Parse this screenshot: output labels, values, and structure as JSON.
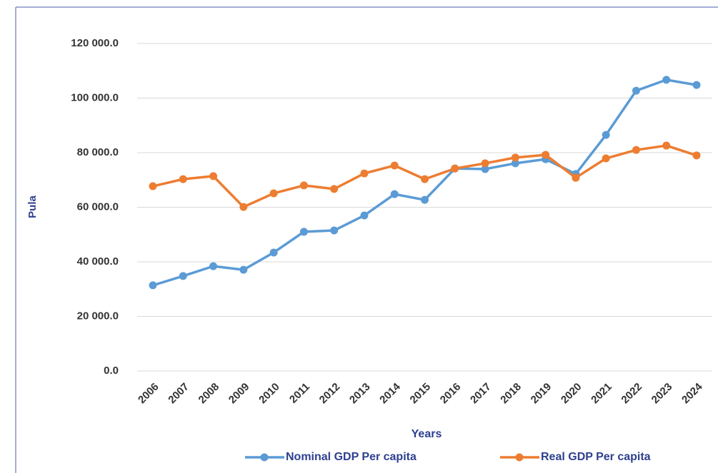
{
  "chart_data": {
    "type": "line",
    "x_label": "Years",
    "y_label": "Pula",
    "categories": [
      "2006",
      "2007",
      "2008",
      "2009",
      "2010",
      "2011",
      "2012",
      "2013",
      "2014",
      "2015",
      "2016",
      "2017",
      "2018",
      "2019",
      "2020",
      "2021",
      "2022",
      "2023",
      "2024"
    ],
    "series": [
      {
        "name": "Nominal GDP Per capita",
        "color": "#5b9bd5",
        "values": [
          31400,
          34800,
          38400,
          37100,
          43400,
          51000,
          51500,
          57000,
          64800,
          62700,
          74200,
          74000,
          76100,
          77600,
          72200,
          86500,
          102700,
          106700,
          104800
        ]
      },
      {
        "name": "Real GDP Per capita",
        "color": "#ed7d31",
        "values": [
          67700,
          70300,
          71400,
          60100,
          65100,
          68000,
          66700,
          72400,
          75300,
          70300,
          74200,
          76100,
          78200,
          79200,
          70800,
          77900,
          81000,
          82600,
          79000
        ]
      }
    ],
    "ylim": [
      0,
      120000
    ],
    "yticks": [
      {
        "value": 0,
        "label": "0.0"
      },
      {
        "value": 20000,
        "label": "20 000.0"
      },
      {
        "value": 40000,
        "label": "40 000.0"
      },
      {
        "value": 60000,
        "label": "60 000.0"
      },
      {
        "value": 80000,
        "label": "80 000.0"
      },
      {
        "value": 100000,
        "label": "100 000.0"
      },
      {
        "value": 120000,
        "label": "120 000.0"
      }
    ],
    "grid": true,
    "legend": "bottom"
  }
}
